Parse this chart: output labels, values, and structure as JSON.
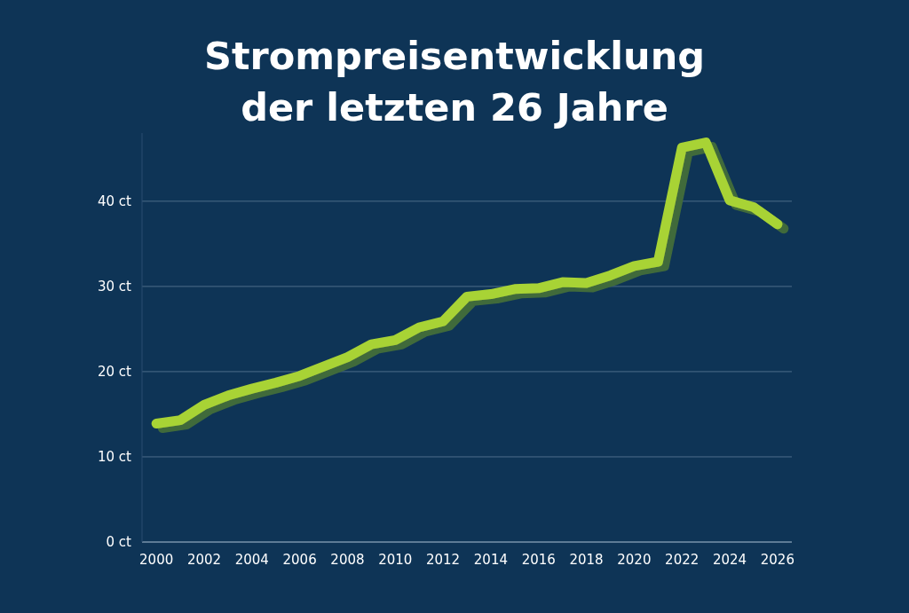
{
  "chart_data": {
    "type": "line",
    "title": "Strompreisentwicklung\nder letzten 26 Jahre",
    "x": [
      2000,
      2001,
      2002,
      2003,
      2004,
      2005,
      2006,
      2007,
      2008,
      2009,
      2010,
      2011,
      2012,
      2013,
      2014,
      2015,
      2016,
      2017,
      2018,
      2019,
      2020,
      2021,
      2022,
      2023,
      2024,
      2025,
      2026
    ],
    "series": [
      {
        "color": "#a8d334",
        "values": [
          13.9,
          14.3,
          16.1,
          17.2,
          18.0,
          18.7,
          19.5,
          20.6,
          21.7,
          23.2,
          23.7,
          25.2,
          25.9,
          28.8,
          29.1,
          29.7,
          29.8,
          30.5,
          30.4,
          31.3,
          32.4,
          32.9,
          46.3,
          46.9,
          40.1,
          39.3,
          37.3
        ]
      }
    ],
    "xlim": [
      1999.4,
      2026.6
    ],
    "ylim": [
      0,
      48
    ],
    "xticks": [
      2000,
      2002,
      2004,
      2006,
      2008,
      2010,
      2012,
      2014,
      2016,
      2018,
      2020,
      2022,
      2024,
      2026
    ],
    "yticks": [
      {
        "value": 0,
        "label": "0 ct"
      },
      {
        "value": 10,
        "label": "10 ct"
      },
      {
        "value": 20,
        "label": "20 ct"
      },
      {
        "value": 30,
        "label": "30 ct"
      },
      {
        "value": 40,
        "label": "40 ct"
      }
    ],
    "grid": "y",
    "marker": "none",
    "line_style": "solid"
  }
}
